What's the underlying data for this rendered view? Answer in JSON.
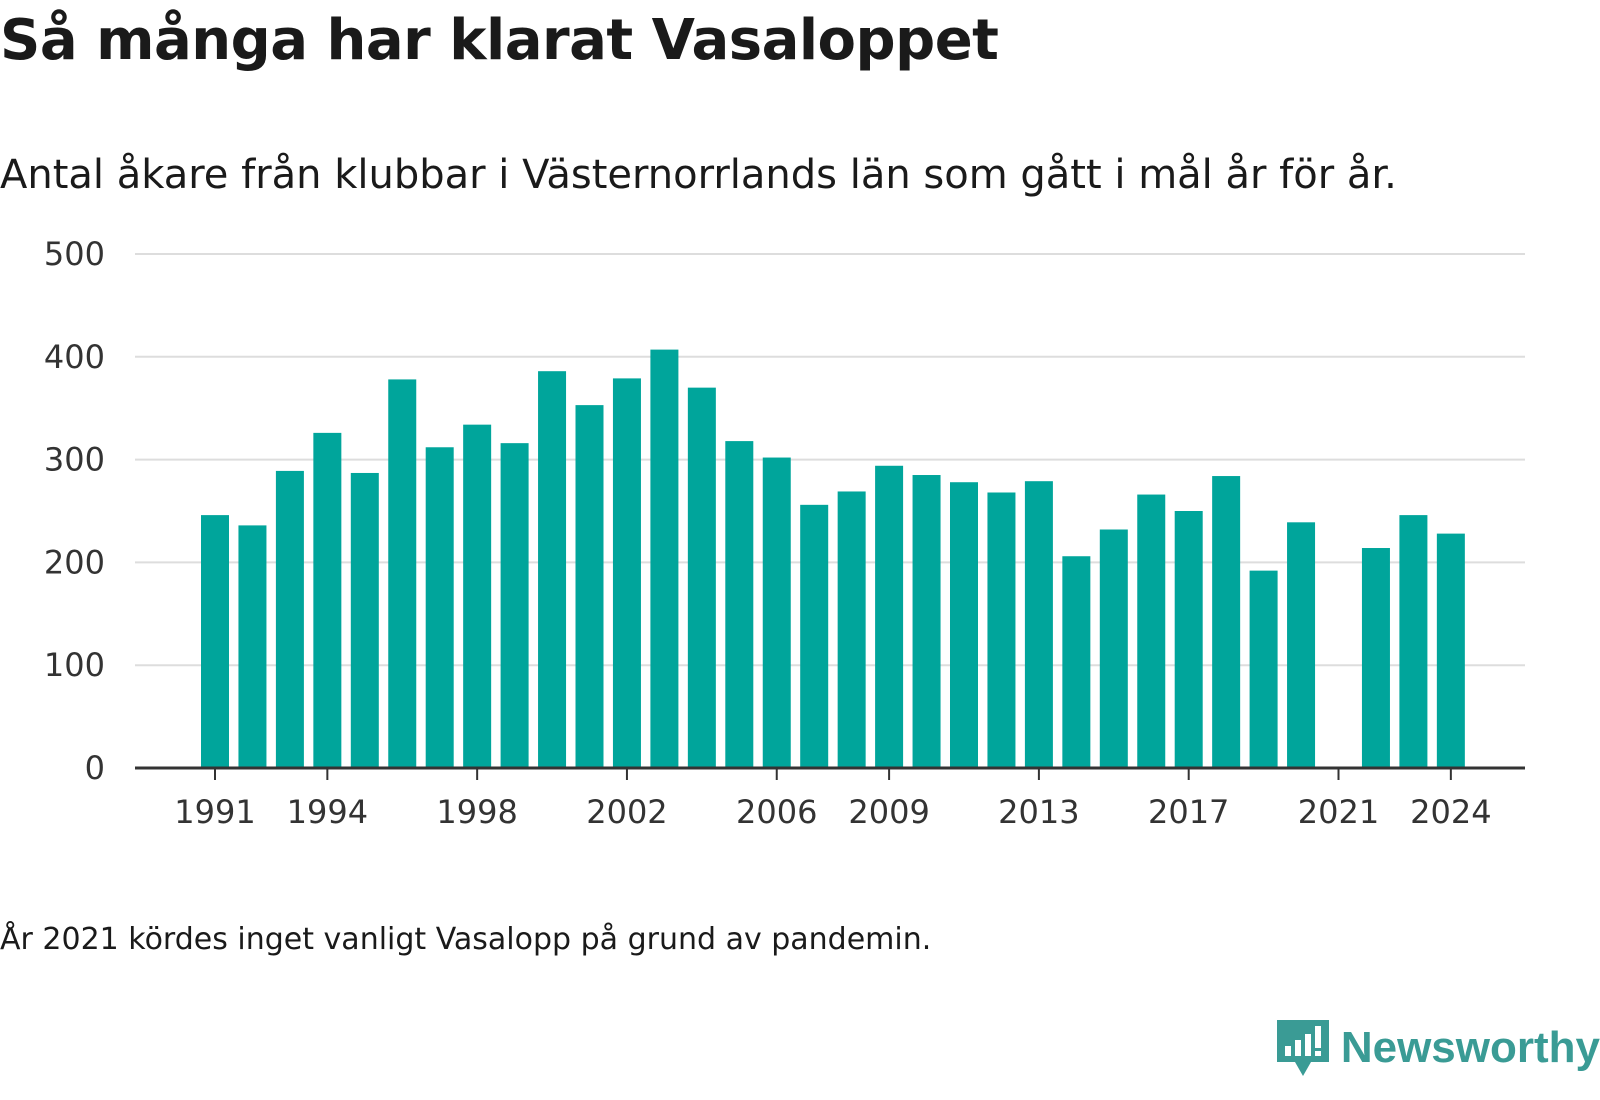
{
  "title": "Så många har klarat Vasaloppet",
  "subtitle": "Antal åkare från klubbar i Västernorrlands län som gått i mål år för år.",
  "footnote": "År 2021 kördes inget vanligt Vasalopp på grund av pandemin.",
  "brand": {
    "name": "Newsworthy",
    "icon": "newsworthy-logo-icon",
    "color": "#3a9b95"
  },
  "chart_data": {
    "type": "bar",
    "title": "Så många har klarat Vasaloppet",
    "subtitle": "Antal åkare från klubbar i Västernorrlands län som gått i mål år för år.",
    "xlabel": "",
    "ylabel": "",
    "categories": [
      1991,
      1992,
      1993,
      1994,
      1995,
      1996,
      1997,
      1998,
      1999,
      2000,
      2001,
      2002,
      2003,
      2004,
      2005,
      2006,
      2007,
      2008,
      2009,
      2010,
      2011,
      2012,
      2013,
      2014,
      2015,
      2016,
      2017,
      2018,
      2019,
      2020,
      2021,
      2022,
      2023,
      2024
    ],
    "values": [
      246,
      236,
      289,
      326,
      287,
      378,
      312,
      334,
      316,
      386,
      353,
      379,
      407,
      370,
      318,
      302,
      256,
      269,
      294,
      285,
      278,
      268,
      279,
      206,
      232,
      266,
      250,
      284,
      192,
      239,
      null,
      214,
      246,
      228
    ],
    "x_tick_labels": [
      "1991",
      "1994",
      "1998",
      "2002",
      "2006",
      "2009",
      "2013",
      "2017",
      "2021",
      "2024"
    ],
    "y_ticks": [
      0,
      100,
      200,
      300,
      400,
      500
    ],
    "ylim": [
      0,
      500
    ],
    "grid": true,
    "bar_color": "#00a59b",
    "grid_color": "#dddddd",
    "axis_color": "#333333"
  }
}
